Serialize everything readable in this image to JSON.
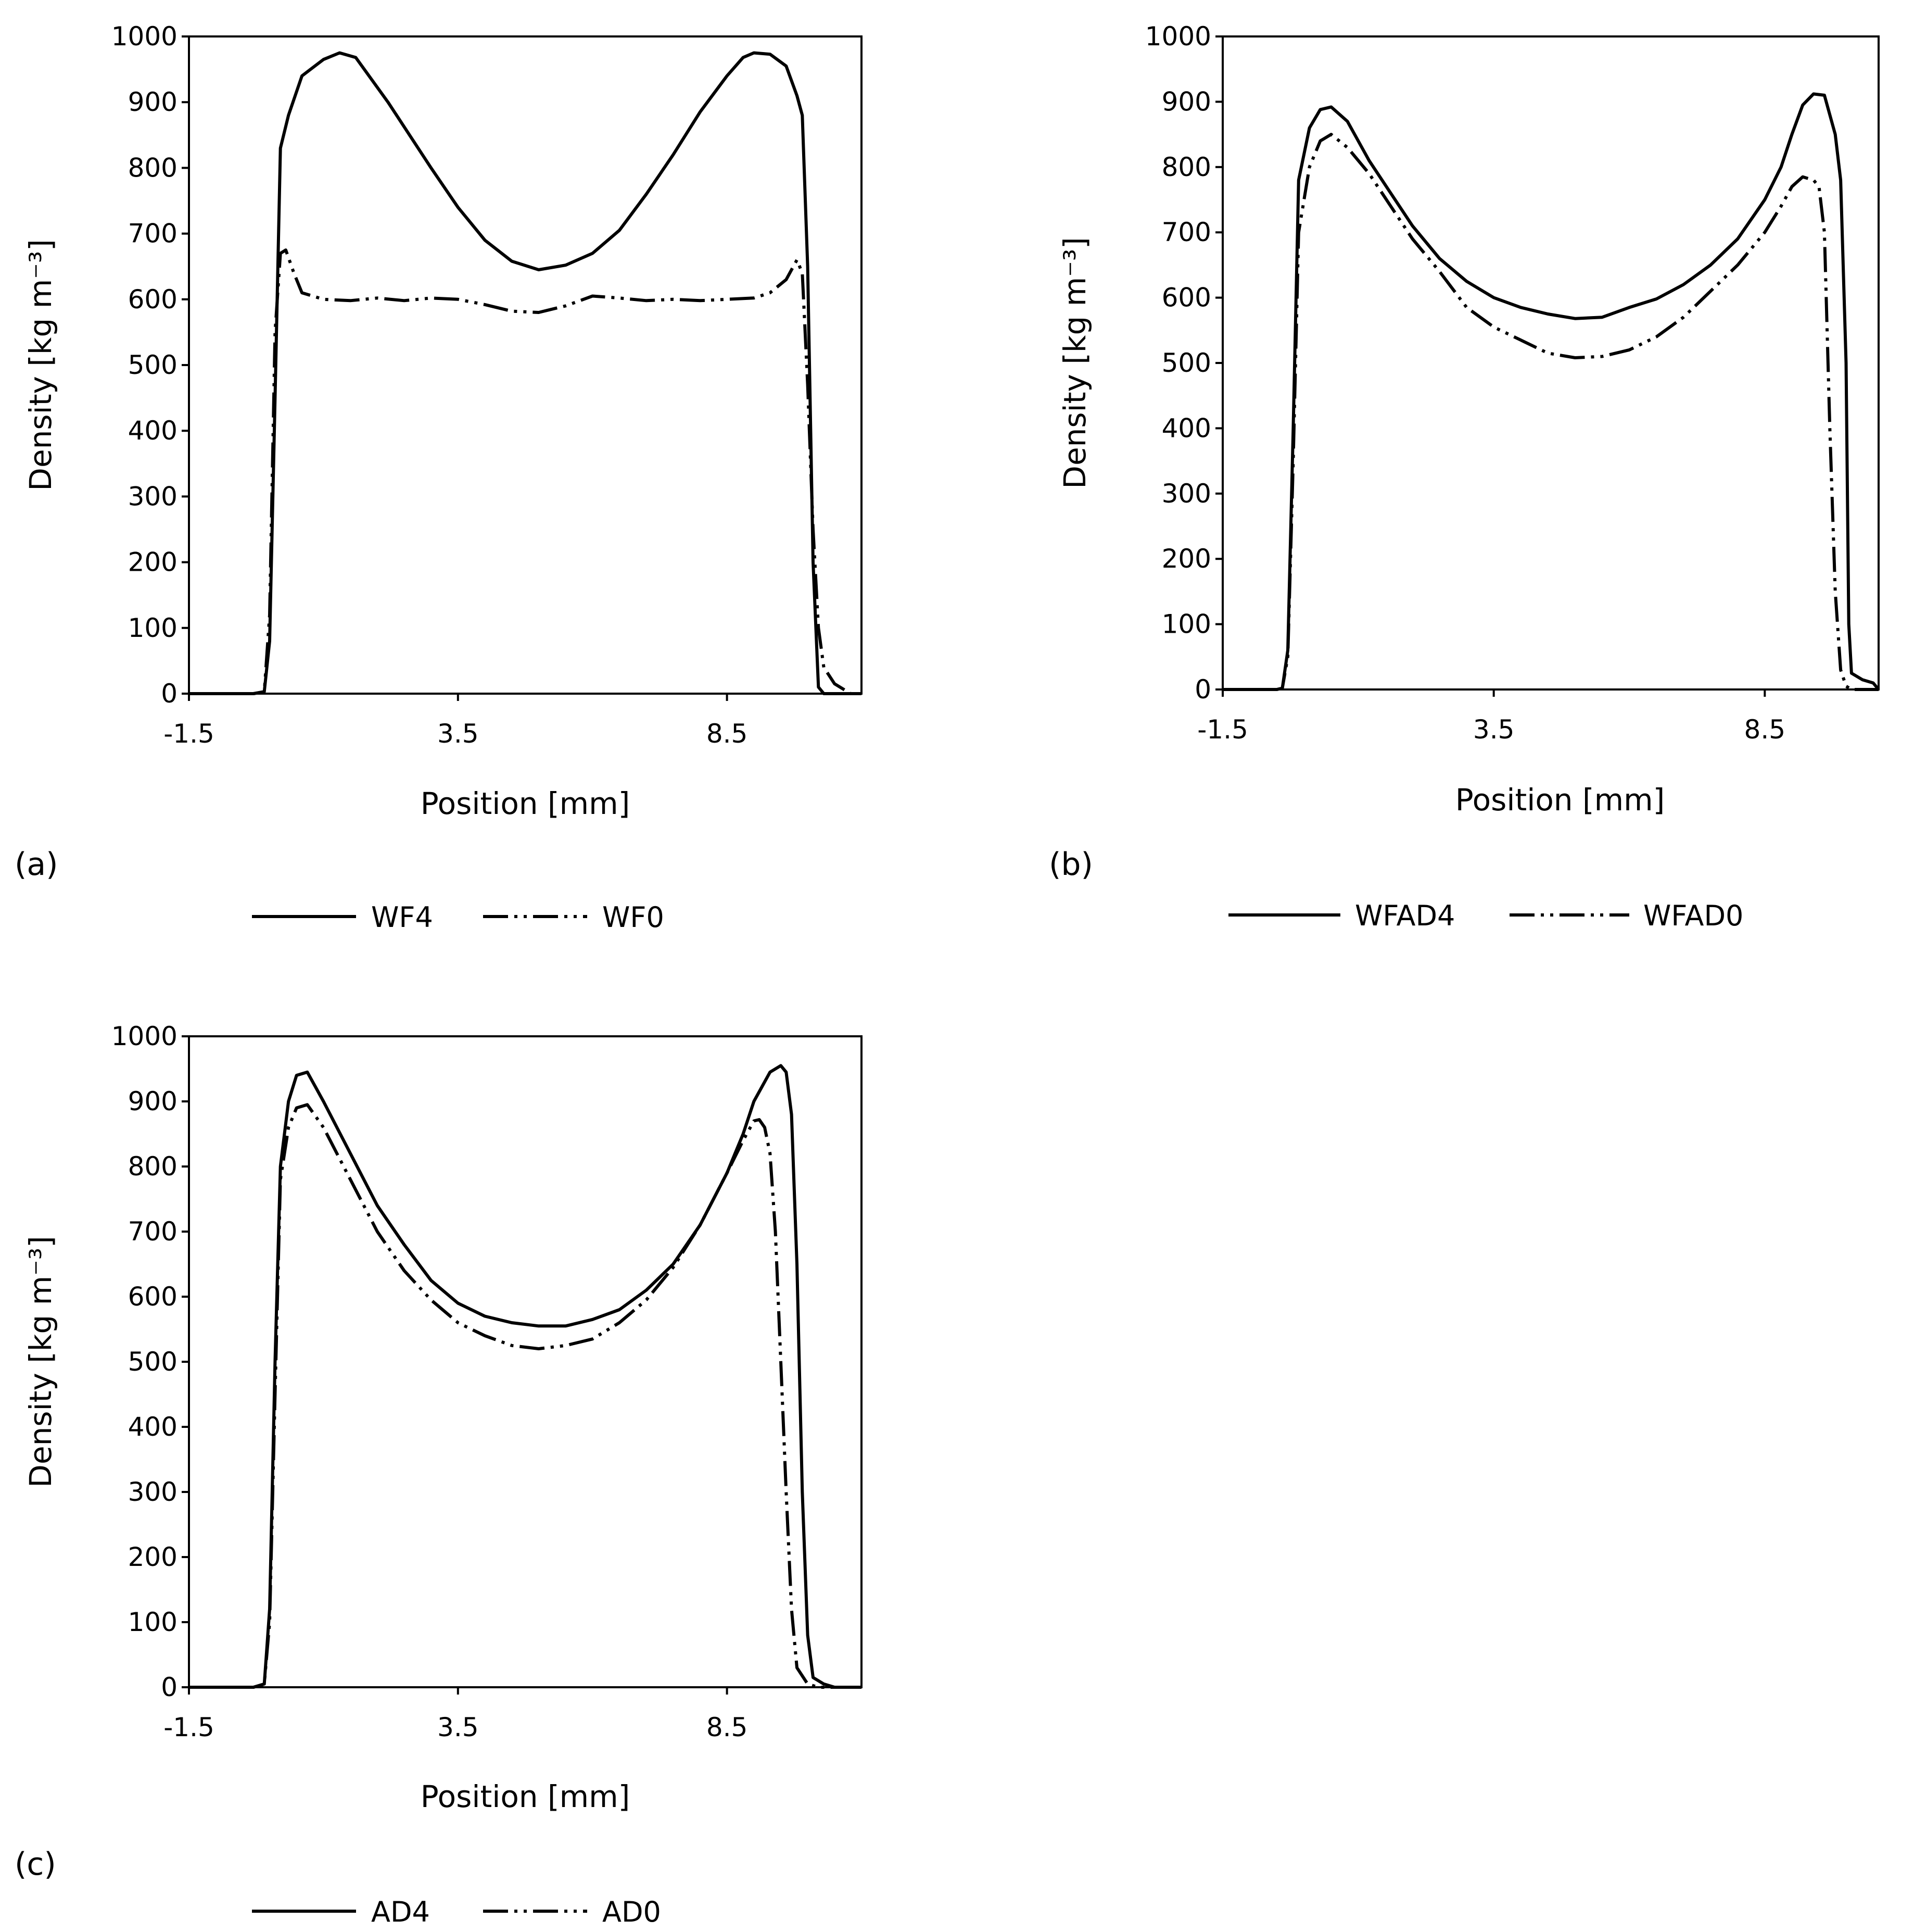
{
  "chart_data": [
    {
      "type": "line",
      "panel_label": "(a)",
      "xlabel": "Position [mm]",
      "ylabel": "Density [kg m⁻³]",
      "x_ticks": [
        "-1.5",
        "3.5",
        "8.5"
      ],
      "y_ticks": [
        "0",
        "100",
        "200",
        "300",
        "400",
        "500",
        "600",
        "700",
        "800",
        "900",
        "1000"
      ],
      "xlim": [
        -1.5,
        11.0
      ],
      "ylim": [
        0,
        1000
      ],
      "legend_position": "bottom",
      "series": [
        {
          "name": "WF4",
          "style": "solid",
          "points": [
            [
              -1.5,
              0
            ],
            [
              -0.3,
              0
            ],
            [
              -0.1,
              3
            ],
            [
              0.0,
              80
            ],
            [
              0.1,
              450
            ],
            [
              0.2,
              830
            ],
            [
              0.35,
              880
            ],
            [
              0.6,
              940
            ],
            [
              1.0,
              965
            ],
            [
              1.3,
              975
            ],
            [
              1.6,
              968
            ],
            [
              2.2,
              900
            ],
            [
              3.0,
              800
            ],
            [
              3.5,
              740
            ],
            [
              4.0,
              690
            ],
            [
              4.5,
              658
            ],
            [
              5.0,
              645
            ],
            [
              5.5,
              652
            ],
            [
              6.0,
              670
            ],
            [
              6.5,
              705
            ],
            [
              7.0,
              760
            ],
            [
              7.5,
              820
            ],
            [
              8.0,
              885
            ],
            [
              8.5,
              940
            ],
            [
              8.8,
              968
            ],
            [
              9.0,
              975
            ],
            [
              9.3,
              973
            ],
            [
              9.6,
              955
            ],
            [
              9.8,
              910
            ],
            [
              9.9,
              880
            ],
            [
              10.0,
              650
            ],
            [
              10.1,
              200
            ],
            [
              10.2,
              10
            ],
            [
              10.3,
              0
            ],
            [
              11.0,
              0
            ]
          ]
        },
        {
          "name": "WF0",
          "style": "dash-dot-dot",
          "points": [
            [
              -1.5,
              0
            ],
            [
              -0.3,
              0
            ],
            [
              -0.1,
              3
            ],
            [
              0.0,
              120
            ],
            [
              0.1,
              550
            ],
            [
              0.2,
              670
            ],
            [
              0.3,
              675
            ],
            [
              0.45,
              640
            ],
            [
              0.6,
              610
            ],
            [
              1.0,
              600
            ],
            [
              1.5,
              598
            ],
            [
              2.0,
              602
            ],
            [
              2.5,
              598
            ],
            [
              3.0,
              602
            ],
            [
              3.5,
              600
            ],
            [
              4.0,
              592
            ],
            [
              4.5,
              582
            ],
            [
              5.0,
              580
            ],
            [
              5.5,
              590
            ],
            [
              6.0,
              605
            ],
            [
              6.5,
              602
            ],
            [
              7.0,
              598
            ],
            [
              7.5,
              600
            ],
            [
              8.0,
              598
            ],
            [
              8.5,
              600
            ],
            [
              9.0,
              602
            ],
            [
              9.3,
              610
            ],
            [
              9.6,
              630
            ],
            [
              9.8,
              660
            ],
            [
              9.9,
              640
            ],
            [
              10.0,
              470
            ],
            [
              10.1,
              250
            ],
            [
              10.2,
              100
            ],
            [
              10.3,
              40
            ],
            [
              10.5,
              15
            ],
            [
              10.7,
              5
            ],
            [
              10.8,
              0
            ],
            [
              11.0,
              0
            ]
          ]
        }
      ]
    },
    {
      "type": "line",
      "panel_label": "(b)",
      "xlabel": "Position [mm]",
      "ylabel": "Density [kg m⁻³]",
      "x_ticks": [
        "-1.5",
        "3.5",
        "8.5"
      ],
      "y_ticks": [
        "0",
        "100",
        "200",
        "300",
        "400",
        "500",
        "600",
        "700",
        "800",
        "900",
        "1000"
      ],
      "xlim": [
        -1.5,
        10.6
      ],
      "ylim": [
        0,
        1000
      ],
      "legend_position": "bottom",
      "series": [
        {
          "name": "WFAD4",
          "style": "solid",
          "points": [
            [
              -1.5,
              0
            ],
            [
              -0.5,
              0
            ],
            [
              -0.4,
              2
            ],
            [
              -0.3,
              60
            ],
            [
              -0.2,
              400
            ],
            [
              -0.1,
              780
            ],
            [
              0.1,
              860
            ],
            [
              0.3,
              888
            ],
            [
              0.5,
              892
            ],
            [
              0.8,
              870
            ],
            [
              1.2,
              810
            ],
            [
              1.6,
              760
            ],
            [
              2.0,
              710
            ],
            [
              2.5,
              660
            ],
            [
              3.0,
              625
            ],
            [
              3.5,
              600
            ],
            [
              4.0,
              585
            ],
            [
              4.5,
              575
            ],
            [
              5.0,
              568
            ],
            [
              5.5,
              570
            ],
            [
              6.0,
              585
            ],
            [
              6.5,
              598
            ],
            [
              7.0,
              620
            ],
            [
              7.5,
              650
            ],
            [
              8.0,
              690
            ],
            [
              8.5,
              750
            ],
            [
              8.8,
              800
            ],
            [
              9.0,
              850
            ],
            [
              9.2,
              895
            ],
            [
              9.4,
              912
            ],
            [
              9.6,
              910
            ],
            [
              9.8,
              850
            ],
            [
              9.9,
              780
            ],
            [
              10.0,
              500
            ],
            [
              10.05,
              100
            ],
            [
              10.1,
              25
            ],
            [
              10.3,
              15
            ],
            [
              10.5,
              10
            ],
            [
              10.6,
              0
            ]
          ]
        },
        {
          "name": "WFAD0",
          "style": "dash-dot-dot",
          "points": [
            [
              -1.5,
              0
            ],
            [
              -0.5,
              0
            ],
            [
              -0.4,
              2
            ],
            [
              -0.3,
              50
            ],
            [
              -0.2,
              350
            ],
            [
              -0.1,
              700
            ],
            [
              0.1,
              800
            ],
            [
              0.3,
              840
            ],
            [
              0.5,
              850
            ],
            [
              0.8,
              830
            ],
            [
              1.2,
              790
            ],
            [
              1.6,
              740
            ],
            [
              2.0,
              690
            ],
            [
              2.5,
              640
            ],
            [
              3.0,
              585
            ],
            [
              3.5,
              555
            ],
            [
              4.0,
              535
            ],
            [
              4.5,
              515
            ],
            [
              5.0,
              508
            ],
            [
              5.5,
              510
            ],
            [
              6.0,
              520
            ],
            [
              6.5,
              540
            ],
            [
              7.0,
              570
            ],
            [
              7.5,
              610
            ],
            [
              8.0,
              650
            ],
            [
              8.5,
              700
            ],
            [
              8.8,
              740
            ],
            [
              9.0,
              770
            ],
            [
              9.2,
              785
            ],
            [
              9.4,
              780
            ],
            [
              9.5,
              770
            ],
            [
              9.6,
              700
            ],
            [
              9.7,
              400
            ],
            [
              9.8,
              150
            ],
            [
              9.9,
              30
            ],
            [
              10.0,
              5
            ],
            [
              10.1,
              0
            ],
            [
              10.6,
              0
            ]
          ]
        }
      ]
    },
    {
      "type": "line",
      "panel_label": "(c)",
      "xlabel": "Position [mm]",
      "ylabel": "Density [kg m⁻³]",
      "x_ticks": [
        "-1.5",
        "3.5",
        "8.5"
      ],
      "y_ticks": [
        "0",
        "100",
        "200",
        "300",
        "400",
        "500",
        "600",
        "700",
        "800",
        "900",
        "1000"
      ],
      "xlim": [
        -1.5,
        11.0
      ],
      "ylim": [
        0,
        1000
      ],
      "legend_position": "bottom",
      "series": [
        {
          "name": "AD4",
          "style": "solid",
          "points": [
            [
              -1.5,
              0
            ],
            [
              -0.3,
              0
            ],
            [
              -0.1,
              5
            ],
            [
              0.0,
              120
            ],
            [
              0.1,
              500
            ],
            [
              0.2,
              800
            ],
            [
              0.35,
              900
            ],
            [
              0.5,
              940
            ],
            [
              0.7,
              945
            ],
            [
              1.0,
              900
            ],
            [
              1.5,
              820
            ],
            [
              2.0,
              740
            ],
            [
              2.5,
              680
            ],
            [
              3.0,
              625
            ],
            [
              3.5,
              590
            ],
            [
              4.0,
              570
            ],
            [
              4.5,
              560
            ],
            [
              5.0,
              555
            ],
            [
              5.5,
              555
            ],
            [
              6.0,
              565
            ],
            [
              6.5,
              580
            ],
            [
              7.0,
              610
            ],
            [
              7.5,
              650
            ],
            [
              8.0,
              710
            ],
            [
              8.5,
              790
            ],
            [
              8.8,
              850
            ],
            [
              9.0,
              900
            ],
            [
              9.3,
              945
            ],
            [
              9.5,
              955
            ],
            [
              9.6,
              945
            ],
            [
              9.7,
              880
            ],
            [
              9.8,
              650
            ],
            [
              9.9,
              300
            ],
            [
              10.0,
              80
            ],
            [
              10.1,
              15
            ],
            [
              10.3,
              5
            ],
            [
              10.5,
              0
            ],
            [
              11.0,
              0
            ]
          ]
        },
        {
          "name": "AD0",
          "style": "dash-dot-dot",
          "points": [
            [
              -1.5,
              0
            ],
            [
              -0.3,
              0
            ],
            [
              -0.1,
              5
            ],
            [
              0.0,
              100
            ],
            [
              0.1,
              450
            ],
            [
              0.2,
              780
            ],
            [
              0.35,
              860
            ],
            [
              0.5,
              890
            ],
            [
              0.7,
              895
            ],
            [
              1.0,
              860
            ],
            [
              1.5,
              780
            ],
            [
              2.0,
              700
            ],
            [
              2.5,
              640
            ],
            [
              3.0,
              595
            ],
            [
              3.5,
              560
            ],
            [
              4.0,
              540
            ],
            [
              4.5,
              525
            ],
            [
              5.0,
              520
            ],
            [
              5.5,
              525
            ],
            [
              6.0,
              535
            ],
            [
              6.5,
              560
            ],
            [
              7.0,
              595
            ],
            [
              7.5,
              645
            ],
            [
              8.0,
              710
            ],
            [
              8.5,
              790
            ],
            [
              8.8,
              840
            ],
            [
              9.0,
              870
            ],
            [
              9.1,
              872
            ],
            [
              9.2,
              860
            ],
            [
              9.3,
              820
            ],
            [
              9.4,
              700
            ],
            [
              9.5,
              500
            ],
            [
              9.6,
              300
            ],
            [
              9.7,
              120
            ],
            [
              9.8,
              30
            ],
            [
              10.0,
              5
            ],
            [
              10.2,
              0
            ],
            [
              11.0,
              0
            ]
          ]
        }
      ]
    }
  ]
}
